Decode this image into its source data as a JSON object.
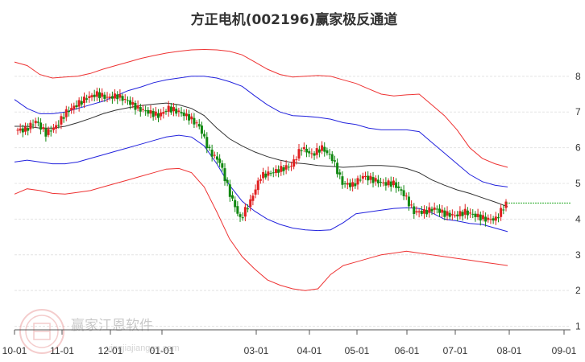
{
  "chart_data": {
    "type": "line",
    "title": "方正电机(002196)赢家极反通道",
    "x_ticks": [
      "10-01",
      "11-01",
      "12-01",
      "01-01",
      "03-01",
      "04-01",
      "05-01",
      "06-01",
      "07-01",
      "08-01",
      "09-01"
    ],
    "y_ticks": [
      "1",
      "2",
      "3",
      "4",
      "5",
      "6",
      "7",
      "8"
    ],
    "ylim": [
      0.9,
      9.1
    ],
    "grid": true,
    "last_close": 4.45,
    "series": [
      {
        "key": "outer_upper",
        "color": "#ee3333",
        "values": [
          8.4,
          8.3,
          8.05,
          7.95,
          7.98,
          8.0,
          8.08,
          8.2,
          8.3,
          8.4,
          8.5,
          8.58,
          8.65,
          8.7,
          8.74,
          8.75,
          8.74,
          8.7,
          8.6,
          8.4,
          8.2,
          8.05,
          7.98,
          8.0,
          8.02,
          8.0,
          7.9,
          7.8,
          7.65,
          7.5,
          7.45,
          7.48,
          7.5,
          7.2,
          6.9,
          6.5,
          6.0,
          5.7,
          5.55,
          5.45
        ]
      },
      {
        "key": "inner_upper",
        "color": "#2222dd",
        "values": [
          7.35,
          7.1,
          6.95,
          6.95,
          7.0,
          7.1,
          7.2,
          7.3,
          7.45,
          7.6,
          7.7,
          7.82,
          7.9,
          7.95,
          8.0,
          8.0,
          7.95,
          7.85,
          7.72,
          7.45,
          7.2,
          7.0,
          6.9,
          6.88,
          6.85,
          6.8,
          6.7,
          6.65,
          6.55,
          6.5,
          6.5,
          6.5,
          6.45,
          6.15,
          5.85,
          5.55,
          5.25,
          5.05,
          4.95,
          4.9
        ]
      },
      {
        "key": "middle",
        "color": "#333333",
        "values": [
          6.6,
          6.6,
          6.55,
          6.55,
          6.6,
          6.7,
          6.82,
          6.95,
          7.05,
          7.12,
          7.18,
          7.22,
          7.25,
          7.2,
          7.1,
          6.9,
          6.55,
          6.25,
          6.05,
          5.88,
          5.75,
          5.65,
          5.58,
          5.55,
          5.5,
          5.48,
          5.45,
          5.47,
          5.5,
          5.5,
          5.48,
          5.42,
          5.3,
          5.1,
          4.95,
          4.82,
          4.72,
          4.6,
          4.48,
          4.35
        ]
      },
      {
        "key": "inner_lower",
        "color": "#2222dd",
        "values": [
          5.6,
          5.65,
          5.6,
          5.55,
          5.55,
          5.6,
          5.7,
          5.8,
          5.9,
          6.0,
          6.1,
          6.2,
          6.3,
          6.35,
          6.3,
          6.05,
          5.55,
          4.95,
          4.5,
          4.22,
          4.0,
          3.85,
          3.75,
          3.7,
          3.68,
          3.7,
          3.9,
          4.15,
          4.2,
          4.25,
          4.3,
          4.32,
          4.3,
          4.18,
          4.0,
          3.95,
          3.88,
          3.85,
          3.75,
          3.65
        ]
      },
      {
        "key": "outer_lower",
        "color": "#ee3333",
        "values": [
          4.7,
          4.85,
          4.8,
          4.72,
          4.7,
          4.75,
          4.8,
          4.9,
          5.0,
          5.1,
          5.2,
          5.3,
          5.4,
          5.42,
          5.3,
          4.9,
          4.2,
          3.45,
          2.95,
          2.6,
          2.3,
          2.15,
          2.05,
          2.0,
          2.05,
          2.45,
          2.7,
          2.8,
          2.9,
          3.0,
          3.05,
          3.1,
          3.05,
          3.0,
          2.95,
          2.9,
          2.85,
          2.8,
          2.75,
          2.7
        ]
      }
    ],
    "candles": [
      6.5,
      6.75,
      6.4,
      6.6,
      7.0,
      7.2,
      7.4,
      7.5,
      7.4,
      7.45,
      7.3,
      7.1,
      7.0,
      6.9,
      7.1,
      7.0,
      6.85,
      6.6,
      5.9,
      5.6,
      4.7,
      4.0,
      4.5,
      5.2,
      5.3,
      5.4,
      5.5,
      6.0,
      5.8,
      6.0,
      5.7,
      5.0,
      4.95,
      5.2,
      5.1,
      5.0,
      5.0,
      4.7,
      4.2,
      4.2,
      4.3,
      4.15,
      4.1,
      4.2,
      4.1,
      4.0,
      4.0,
      4.45
    ]
  }
}
